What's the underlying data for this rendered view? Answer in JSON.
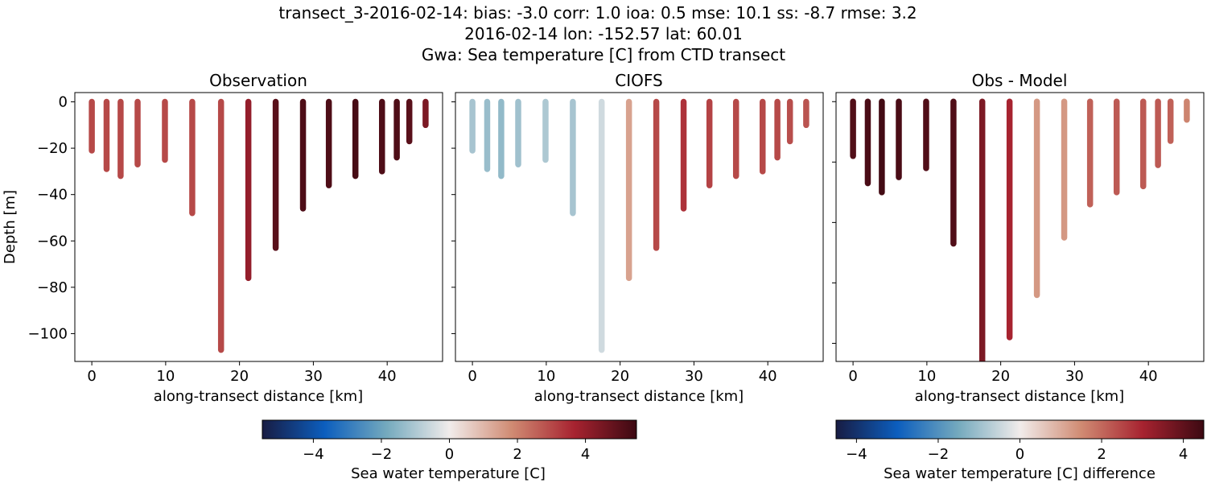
{
  "figure": {
    "suptitle_lines": [
      "transect_3-2016-02-14: bias: -3.0  corr: 1.0  ioa: 0.5  mse: 10.1  ss: -8.7  rmse: 3.2",
      "2016-02-14 lon: -152.57 lat: 60.01",
      "Gwa: Sea temperature [C] from CTD transect"
    ]
  },
  "colorbars": [
    {
      "label": "Sea water temperature [C]",
      "range": [
        -5.5,
        5.5
      ],
      "ticks": [
        -4,
        -2,
        0,
        2,
        4
      ],
      "tick_labels": [
        "−4",
        "−2",
        "0",
        "2",
        "4"
      ]
    },
    {
      "label": "Sea water temperature [C] difference",
      "range": [
        -4.5,
        4.5
      ],
      "ticks": [
        -4,
        -2,
        0,
        2,
        4
      ],
      "tick_labels": [
        "−4",
        "−2",
        "0",
        "2",
        "4"
      ]
    }
  ],
  "colormap": {
    "name": "balance",
    "stops": [
      "#181c43",
      "#0c5ebe",
      "#75aabe",
      "#f1eceb",
      "#d08b73",
      "#a72330",
      "#3c0912"
    ]
  },
  "chart_data": [
    {
      "type": "scatter",
      "title": "Observation",
      "xlabel": "along-transect distance [km]",
      "ylabel": "Depth [m]",
      "xlim": [
        -2.3,
        47.5
      ],
      "ylim": [
        -112,
        4
      ],
      "xticks": [
        0,
        10,
        20,
        30,
        40
      ],
      "xtick_labels": [
        "0",
        "10",
        "20",
        "30",
        "40"
      ],
      "yticks": [
        0,
        -20,
        -40,
        -60,
        -80,
        -100
      ],
      "ytick_labels": [
        "0",
        "−20",
        "−40",
        "−60",
        "−80",
        "−100"
      ],
      "color_range": [
        -5.5,
        5.5
      ],
      "casts": [
        {
          "x": 0,
          "bottom": -21,
          "value": 3.0
        },
        {
          "x": 2,
          "bottom": -29,
          "value": 3.0
        },
        {
          "x": 3.9,
          "bottom": -32,
          "value": 3.0
        },
        {
          "x": 6.2,
          "bottom": -27,
          "value": 3.0
        },
        {
          "x": 9.9,
          "bottom": -25,
          "value": 3.0
        },
        {
          "x": 13.6,
          "bottom": -48,
          "value": 3.0
        },
        {
          "x": 17.5,
          "bottom": -107,
          "value": 3.0
        },
        {
          "x": 21.2,
          "bottom": -76,
          "value": 4.0
        },
        {
          "x": 24.9,
          "bottom": -63,
          "value": 5.0
        },
        {
          "x": 28.6,
          "bottom": -46,
          "value": 5.2
        },
        {
          "x": 32.1,
          "bottom": -36,
          "value": 5.2
        },
        {
          "x": 35.7,
          "bottom": -32,
          "value": 5.3
        },
        {
          "x": 39.3,
          "bottom": -30,
          "value": 5.2
        },
        {
          "x": 41.3,
          "bottom": -24,
          "value": 5.2
        },
        {
          "x": 43.0,
          "bottom": -17,
          "value": 5.0
        },
        {
          "x": 45.2,
          "bottom": -10,
          "value": 4.4
        }
      ]
    },
    {
      "type": "scatter",
      "title": "CIOFS",
      "xlabel": "along-transect distance [km]",
      "ylabel": "",
      "xlim": [
        -2.3,
        47.5
      ],
      "ylim": [
        -112,
        4
      ],
      "xticks": [
        0,
        10,
        20,
        30,
        40
      ],
      "xtick_labels": [
        "0",
        "10",
        "20",
        "30",
        "40"
      ],
      "yticks": [
        0,
        -20,
        -40,
        -60,
        -80,
        -100
      ],
      "ytick_labels": [],
      "color_range": [
        -5.5,
        5.5
      ],
      "casts": [
        {
          "x": 0,
          "bottom": -21,
          "value": -1.1
        },
        {
          "x": 2,
          "bottom": -29,
          "value": -1.3
        },
        {
          "x": 3.9,
          "bottom": -32,
          "value": -1.4
        },
        {
          "x": 6.2,
          "bottom": -27,
          "value": -1.2
        },
        {
          "x": 9.9,
          "bottom": -25,
          "value": -1.0
        },
        {
          "x": 13.6,
          "bottom": -48,
          "value": -1.1
        },
        {
          "x": 17.5,
          "bottom": -107,
          "value": -0.5
        },
        {
          "x": 21.2,
          "bottom": -76,
          "value": 1.4
        },
        {
          "x": 24.9,
          "bottom": -63,
          "value": 3.0
        },
        {
          "x": 28.6,
          "bottom": -46,
          "value": 3.4
        },
        {
          "x": 32.1,
          "bottom": -36,
          "value": 3.1
        },
        {
          "x": 35.7,
          "bottom": -32,
          "value": 3.0
        },
        {
          "x": 39.3,
          "bottom": -30,
          "value": 3.0
        },
        {
          "x": 41.3,
          "bottom": -24,
          "value": 3.0
        },
        {
          "x": 43.0,
          "bottom": -17,
          "value": 2.9
        },
        {
          "x": 45.2,
          "bottom": -10,
          "value": 2.8
        }
      ]
    },
    {
      "type": "scatter",
      "title": "Obs - Model",
      "xlabel": "along-transect distance [km]",
      "ylabel": "",
      "xlim": [
        -2.3,
        47.5
      ],
      "ylim": [
        -86,
        3
      ],
      "xticks": [
        0,
        10,
        20,
        30,
        40
      ],
      "xtick_labels": [
        "0",
        "10",
        "20",
        "30",
        "40"
      ],
      "yticks": [
        0,
        -20,
        -40,
        -60,
        -80
      ],
      "ytick_labels": [],
      "color_range": [
        -4.5,
        4.5
      ],
      "casts": [
        {
          "x": 0,
          "bottom": -18,
          "value": 4.2
        },
        {
          "x": 2,
          "bottom": -27,
          "value": 4.3
        },
        {
          "x": 3.9,
          "bottom": -30,
          "value": 4.4
        },
        {
          "x": 6.2,
          "bottom": -25,
          "value": 4.3
        },
        {
          "x": 9.9,
          "bottom": -22,
          "value": 4.2
        },
        {
          "x": 13.6,
          "bottom": -47,
          "value": 4.2
        },
        {
          "x": 17.5,
          "bottom": -86,
          "value": 3.6
        },
        {
          "x": 21.2,
          "bottom": -78,
          "value": 3.0
        },
        {
          "x": 24.9,
          "bottom": -64,
          "value": 1.3
        },
        {
          "x": 28.6,
          "bottom": -45,
          "value": 1.3
        },
        {
          "x": 32.1,
          "bottom": -34,
          "value": 2.1
        },
        {
          "x": 35.7,
          "bottom": -30,
          "value": 2.2
        },
        {
          "x": 39.3,
          "bottom": -28,
          "value": 2.2
        },
        {
          "x": 41.3,
          "bottom": -21,
          "value": 2.2
        },
        {
          "x": 43.0,
          "bottom": -13,
          "value": 2.1
        },
        {
          "x": 45.2,
          "bottom": -6,
          "value": 1.6
        }
      ]
    }
  ]
}
